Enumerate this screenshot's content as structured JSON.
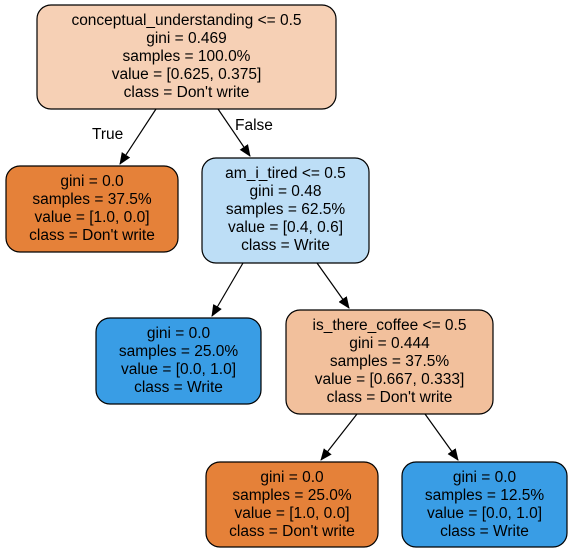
{
  "tree": {
    "edge_labels": {
      "true": "True",
      "false": "False"
    },
    "colors": {
      "orange_leaf": "#e58139",
      "blue_leaf": "#399de5",
      "root": "#f6d0b5",
      "blue_mid": "#bddef6",
      "orange_mid": "#f2c09c",
      "stroke": "#000000"
    },
    "nodes": [
      {
        "id": "n0",
        "lines": [
          "conceptual_understanding <= 0.5",
          "gini = 0.469",
          "samples = 100.0%",
          "value = [0.625, 0.375]",
          "class = Don't write"
        ]
      },
      {
        "id": "n1",
        "lines": [
          "gini = 0.0",
          "samples = 37.5%",
          "value = [1.0, 0.0]",
          "class = Don't write"
        ]
      },
      {
        "id": "n2",
        "lines": [
          "am_i_tired <= 0.5",
          "gini = 0.48",
          "samples = 62.5%",
          "value = [0.4, 0.6]",
          "class = Write"
        ]
      },
      {
        "id": "n3",
        "lines": [
          "gini = 0.0",
          "samples = 25.0%",
          "value = [0.0, 1.0]",
          "class = Write"
        ]
      },
      {
        "id": "n4",
        "lines": [
          "is_there_coffee <= 0.5",
          "gini = 0.444",
          "samples = 37.5%",
          "value = [0.667, 0.333]",
          "class = Don't write"
        ]
      },
      {
        "id": "n5",
        "lines": [
          "gini = 0.0",
          "samples = 25.0%",
          "value = [1.0, 0.0]",
          "class = Don't write"
        ]
      },
      {
        "id": "n6",
        "lines": [
          "gini = 0.0",
          "samples = 12.5%",
          "value = [0.0, 1.0]",
          "class = Write"
        ]
      }
    ]
  }
}
